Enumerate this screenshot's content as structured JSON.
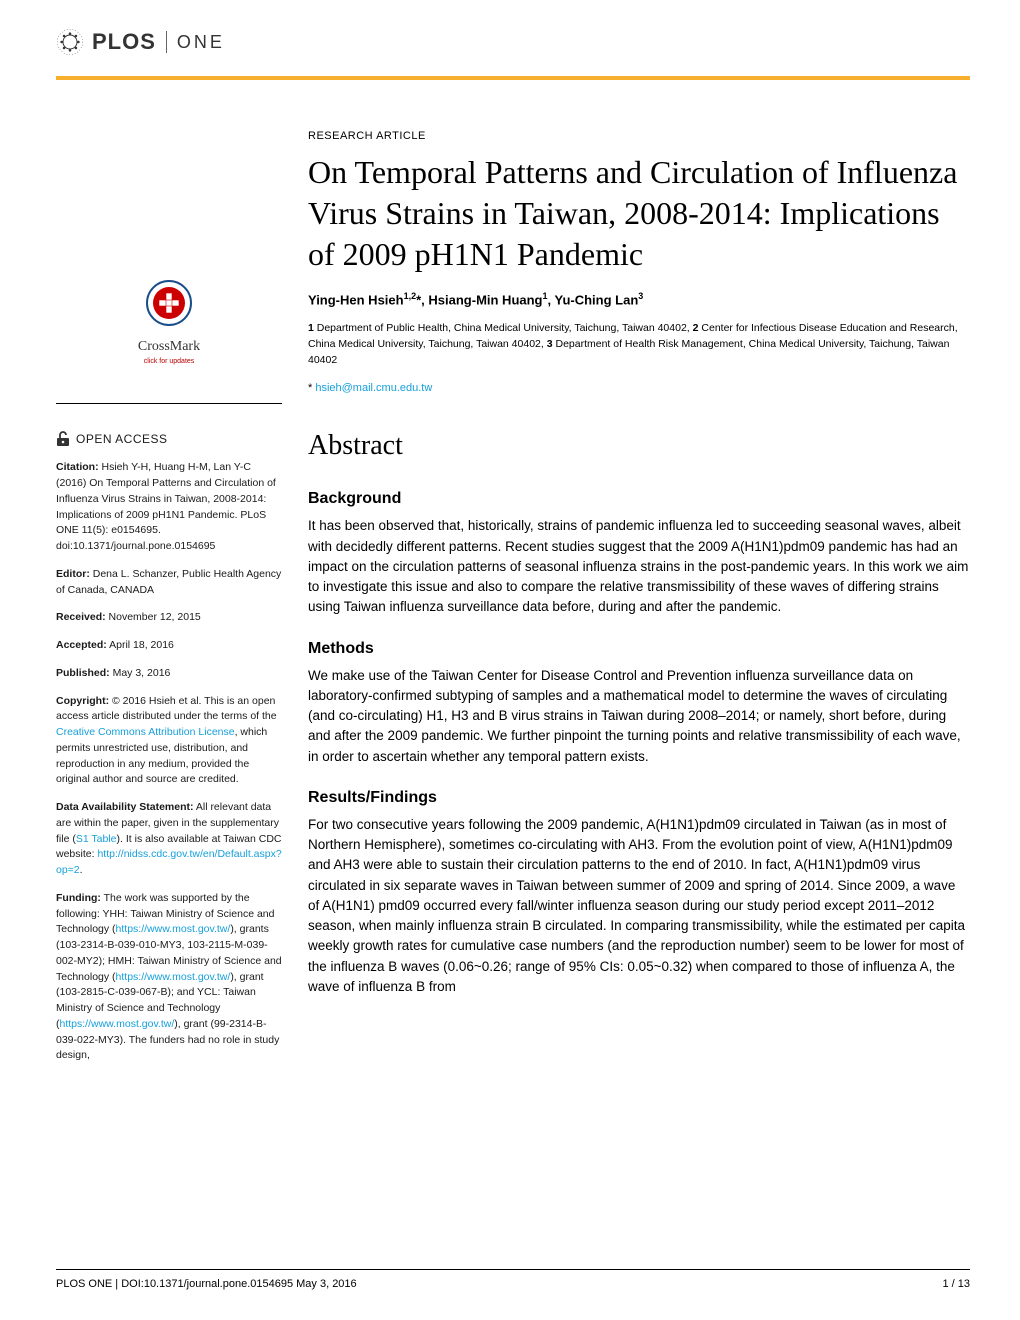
{
  "journal": {
    "logo_text": "PLOS",
    "sub_brand": "ONE",
    "accent_color": "#f8af2d",
    "link_color": "#16a0db"
  },
  "crossmark": {
    "label": "CrossMark",
    "sub": "click for updates"
  },
  "open_access_label": "OPEN ACCESS",
  "sidebar": {
    "citation_label": "Citation:",
    "citation_text": " Hsieh Y-H, Huang H-M, Lan Y-C (2016) On Temporal Patterns and Circulation of Influenza Virus Strains in Taiwan, 2008-2014: Implications of 2009 pH1N1 Pandemic. PLoS ONE 11(5): e0154695. doi:10.1371/journal.pone.0154695",
    "editor_label": "Editor:",
    "editor_text": " Dena L. Schanzer, Public Health Agency of Canada, CANADA",
    "received_label": "Received:",
    "received_text": " November 12, 2015",
    "accepted_label": "Accepted:",
    "accepted_text": " April 18, 2016",
    "published_label": "Published:",
    "published_text": " May 3, 2016",
    "copyright_label": "Copyright:",
    "copyright_text_pre": " © 2016 Hsieh et al. This is an open access article distributed under the terms of the ",
    "copyright_link": "Creative Commons Attribution License",
    "copyright_text_post": ", which permits unrestricted use, distribution, and reproduction in any medium, provided the original author and source are credited.",
    "data_label": "Data Availability Statement:",
    "data_text_pre": " All relevant data are within the paper, given in the supplementary file (",
    "data_link1": "S1 Table",
    "data_text_mid": "). It is also available at Taiwan CDC website: ",
    "data_link2": "http://nidss.cdc.gov.tw/en/Default.aspx?op=2",
    "data_text_post": ".",
    "funding_label": "Funding:",
    "funding_text_1": " The work was supported by the following: YHH: Taiwan Ministry of Science and Technology (",
    "funding_link1": "https://www.most.gov.tw/",
    "funding_text_2": "), grants (103-2314-B-039-010-MY3, 103-2115-M-039-002-MY2); HMH: Taiwan Ministry of Science and Technology (",
    "funding_link2": "https://www.most.gov.tw/",
    "funding_text_3": "), grant (103-2815-C-039-067-B); and YCL: Taiwan Ministry of Science and Technology (",
    "funding_link3": "https://www.most.gov.tw/",
    "funding_text_4": "), grant (99-2314-B-039-022-MY3). The funders had no role in study design,"
  },
  "article": {
    "type": "RESEARCH ARTICLE",
    "title": "On Temporal Patterns and Circulation of Influenza Virus Strains in Taiwan, 2008-2014: Implications of 2009 pH1N1 Pandemic",
    "authors_html": "Ying-Hen Hsieh<sup>1,2</sup>*, Hsiang-Min Huang<sup>1</sup>, Yu-Ching Lan<sup>3</sup>",
    "affiliations_html": "<b>1</b> Department of Public Health, China Medical University, Taichung, Taiwan 40402, <b>2</b> Center for Infectious Disease Education and Research, China Medical University, Taichung, Taiwan 40402, <b>3</b> Department of Health Risk Management, China Medical University, Taichung, Taiwan 40402",
    "corr_symbol": "* ",
    "corr_email": "hsieh@mail.cmu.edu.tw",
    "abstract_heading": "Abstract",
    "sections": {
      "background": {
        "heading": "Background",
        "body": "It has been observed that, historically, strains of pandemic influenza led to succeeding seasonal waves, albeit with decidedly different patterns. Recent studies suggest that the 2009 A(H1N1)pdm09 pandemic has had an impact on the circulation patterns of seasonal influenza strains in the post-pandemic years. In this work we aim to investigate this issue and also to compare the relative transmissibility of these waves of differing strains using Taiwan influenza surveillance data before, during and after the pandemic."
      },
      "methods": {
        "heading": "Methods",
        "body": "We make use of the Taiwan Center for Disease Control and Prevention influenza surveillance data on laboratory-confirmed subtyping of samples and a mathematical model to determine the waves of circulating (and co-circulating) H1, H3 and B virus strains in Taiwan during 2008–2014; or namely, short before, during and after the 2009 pandemic. We further pinpoint the turning points and relative transmissibility of each wave, in order to ascertain whether any temporal pattern exists."
      },
      "results": {
        "heading": "Results/Findings",
        "body": "For two consecutive years following the 2009 pandemic, A(H1N1)pdm09 circulated in Taiwan (as in most of Northern Hemisphere), sometimes co-circulating with AH3. From the evolution point of view, A(H1N1)pdm09 and AH3 were able to sustain their circulation patterns to the end of 2010. In fact, A(H1N1)pdm09 virus circulated in six separate waves in Taiwan between summer of 2009 and spring of 2014. Since 2009, a wave of A(H1N1) pmd09 occurred every fall/winter influenza season during our study period except 2011–2012 season, when mainly influenza strain B circulated. In comparing transmissibility, while the estimated per capita weekly growth rates for cumulative case numbers (and the reproduction number) seem to be lower for most of the influenza B waves (0.06~0.26; range of 95% CIs: 0.05~0.32) when compared to those of influenza A, the wave of influenza B from"
      }
    }
  },
  "footer": {
    "left": "PLOS ONE | DOI:10.1371/journal.pone.0154695    May 3, 2016",
    "right": "1 / 13"
  }
}
